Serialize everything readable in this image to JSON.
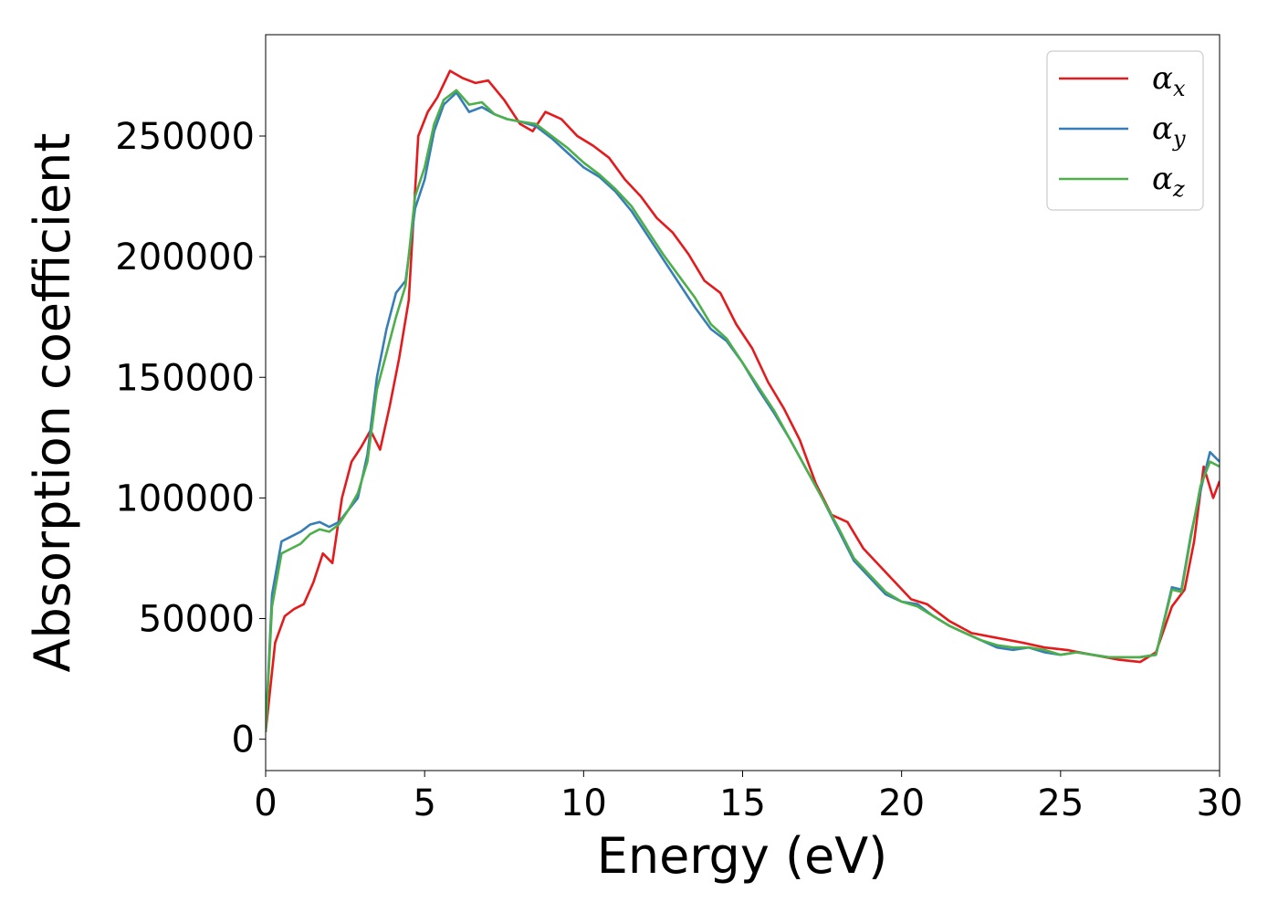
{
  "chart_data": {
    "type": "line",
    "title": "",
    "xlabel": "Energy (eV)",
    "ylabel": "Absorption coefficient",
    "xlim": [
      0,
      30
    ],
    "ylim": [
      -13000,
      292000
    ],
    "grid": false,
    "legend_location": "top-right",
    "xticks": [
      0,
      5,
      10,
      15,
      20,
      25,
      30
    ],
    "yticks": [
      0,
      50000,
      100000,
      150000,
      200000,
      250000
    ],
    "series": [
      {
        "name": "α_x",
        "symbol": "α",
        "subscript": "x",
        "color": "#e41a1c",
        "x": [
          0,
          0.3,
          0.6,
          0.9,
          1.2,
          1.5,
          1.8,
          2.1,
          2.4,
          2.7,
          3.0,
          3.3,
          3.6,
          3.9,
          4.2,
          4.5,
          4.8,
          5.1,
          5.4,
          5.8,
          6.2,
          6.6,
          7.0,
          7.5,
          8.0,
          8.4,
          8.8,
          9.3,
          9.8,
          10.3,
          10.8,
          11.3,
          11.8,
          12.3,
          12.8,
          13.3,
          13.8,
          14.3,
          14.8,
          15.3,
          15.8,
          16.3,
          16.8,
          17.3,
          17.8,
          18.3,
          18.8,
          19.3,
          19.8,
          20.3,
          20.8,
          21.5,
          22.2,
          23.0,
          23.8,
          24.5,
          25.2,
          26.0,
          26.8,
          27.5,
          28.0,
          28.5,
          28.9,
          29.2,
          29.5,
          29.8,
          30.0
        ],
        "y": [
          3000,
          40000,
          51000,
          54000,
          56000,
          65000,
          77000,
          73000,
          100000,
          115000,
          121000,
          128000,
          120000,
          138000,
          158000,
          182000,
          250000,
          260000,
          266000,
          277000,
          274000,
          272000,
          273000,
          265000,
          255000,
          252000,
          260000,
          257000,
          250000,
          246000,
          241000,
          232000,
          225000,
          216000,
          210000,
          201000,
          190000,
          185000,
          172000,
          162000,
          148000,
          137000,
          124000,
          106000,
          93000,
          90000,
          79000,
          72000,
          65000,
          58000,
          56000,
          49000,
          44000,
          42000,
          40000,
          38000,
          37000,
          35000,
          33000,
          32000,
          36000,
          55000,
          62000,
          82000,
          113000,
          100000,
          107000
        ]
      },
      {
        "name": "α_y",
        "symbol": "α",
        "subscript": "y",
        "color": "#377eb8",
        "x": [
          0,
          0.2,
          0.5,
          0.8,
          1.1,
          1.4,
          1.7,
          2.0,
          2.3,
          2.6,
          2.9,
          3.2,
          3.5,
          3.8,
          4.1,
          4.4,
          4.7,
          5.0,
          5.3,
          5.6,
          6.0,
          6.4,
          6.8,
          7.2,
          7.6,
          8.0,
          8.5,
          9.0,
          9.5,
          10.0,
          10.5,
          11.0,
          11.5,
          12.0,
          12.5,
          13.0,
          13.5,
          14.0,
          14.5,
          15.0,
          15.5,
          16.0,
          16.5,
          17.0,
          17.5,
          18.0,
          18.5,
          19.0,
          19.5,
          20.0,
          20.5,
          21.0,
          21.5,
          22.0,
          22.5,
          23.0,
          23.5,
          24.0,
          24.5,
          25.0,
          25.5,
          26.0,
          26.5,
          27.0,
          27.5,
          28.0,
          28.5,
          28.8,
          29.1,
          29.4,
          29.7,
          30.0
        ],
        "y": [
          3000,
          60000,
          82000,
          84000,
          86000,
          89000,
          90000,
          88000,
          90000,
          95000,
          100000,
          118000,
          150000,
          170000,
          185000,
          190000,
          220000,
          232000,
          252000,
          263000,
          268000,
          260000,
          262000,
          259000,
          257000,
          256000,
          254000,
          249000,
          243000,
          237000,
          233000,
          227000,
          219000,
          209000,
          199000,
          189000,
          179000,
          170000,
          165000,
          156000,
          145000,
          135000,
          124000,
          112000,
          100000,
          87000,
          74000,
          67000,
          60000,
          57000,
          56000,
          51000,
          47000,
          44000,
          41000,
          38000,
          37000,
          38000,
          36000,
          35000,
          36000,
          35000,
          34000,
          34000,
          34000,
          35000,
          63000,
          62000,
          85000,
          103000,
          119000,
          115000
        ]
      },
      {
        "name": "α_z",
        "symbol": "α",
        "subscript": "z",
        "color": "#4daf4a",
        "x": [
          0,
          0.2,
          0.5,
          0.8,
          1.1,
          1.4,
          1.7,
          2.0,
          2.3,
          2.6,
          2.9,
          3.2,
          3.5,
          3.8,
          4.1,
          4.4,
          4.7,
          5.0,
          5.3,
          5.6,
          6.0,
          6.4,
          6.8,
          7.2,
          7.6,
          8.0,
          8.5,
          9.0,
          9.5,
          10.0,
          10.5,
          11.0,
          11.5,
          12.0,
          12.5,
          13.0,
          13.5,
          14.0,
          14.5,
          15.0,
          15.5,
          16.0,
          16.5,
          17.0,
          17.5,
          18.0,
          18.5,
          19.0,
          19.5,
          20.0,
          20.5,
          21.0,
          21.5,
          22.0,
          22.5,
          23.0,
          23.5,
          24.0,
          24.5,
          25.0,
          25.5,
          26.0,
          26.5,
          27.0,
          27.5,
          28.0,
          28.5,
          28.8,
          29.1,
          29.4,
          29.7,
          30.0
        ],
        "y": [
          3000,
          55000,
          77000,
          79000,
          81000,
          85000,
          87000,
          86000,
          89000,
          95000,
          102000,
          115000,
          145000,
          160000,
          175000,
          188000,
          225000,
          237000,
          255000,
          265000,
          269000,
          263000,
          264000,
          259000,
          257000,
          256000,
          255000,
          250000,
          245000,
          239000,
          234000,
          228000,
          221000,
          211000,
          201000,
          192000,
          183000,
          172000,
          166000,
          156000,
          146000,
          136000,
          124000,
          112000,
          100000,
          88000,
          75000,
          68000,
          61000,
          57000,
          55000,
          51000,
          47000,
          44000,
          41000,
          39000,
          38000,
          38000,
          37000,
          35000,
          36000,
          35000,
          34000,
          34000,
          34000,
          35000,
          62000,
          61000,
          84000,
          105000,
          115000,
          113000
        ]
      }
    ]
  }
}
